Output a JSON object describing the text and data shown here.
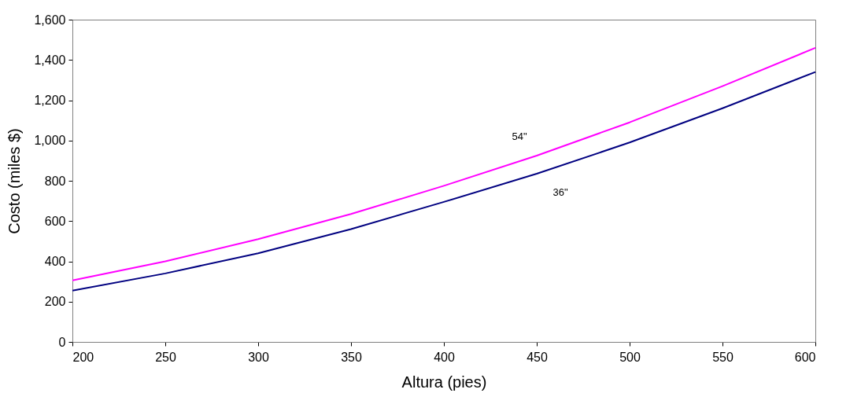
{
  "chart_data": {
    "type": "line",
    "xlabel": "Altura (pies)",
    "ylabel": "Costo (miles $)",
    "x": [
      200,
      250,
      300,
      350,
      400,
      450,
      500,
      550,
      600
    ],
    "series": [
      {
        "name": "54\"",
        "color": "#ff00ff",
        "values": [
          305,
          400,
          510,
          635,
          775,
          925,
          1090,
          1270,
          1460
        ]
      },
      {
        "name": "36\"",
        "color": "#000080",
        "values": [
          255,
          340,
          440,
          560,
          695,
          835,
          990,
          1160,
          1340
        ]
      }
    ],
    "xlim": [
      200,
      600
    ],
    "xticks": [
      200,
      250,
      300,
      350,
      400,
      450,
      500,
      550,
      600
    ],
    "ylim": [
      0,
      1600
    ],
    "yticks": [
      0,
      200,
      400,
      600,
      800,
      {
        "value": 1000,
        "label": "1,000"
      },
      {
        "value": 1200,
        "label": "1,200"
      },
      {
        "value": 1400,
        "label": "1,400"
      },
      {
        "value": 1600,
        "label": "1,600"
      }
    ],
    "grid": false,
    "legend": false,
    "marker": "none",
    "line_style": "solid"
  }
}
